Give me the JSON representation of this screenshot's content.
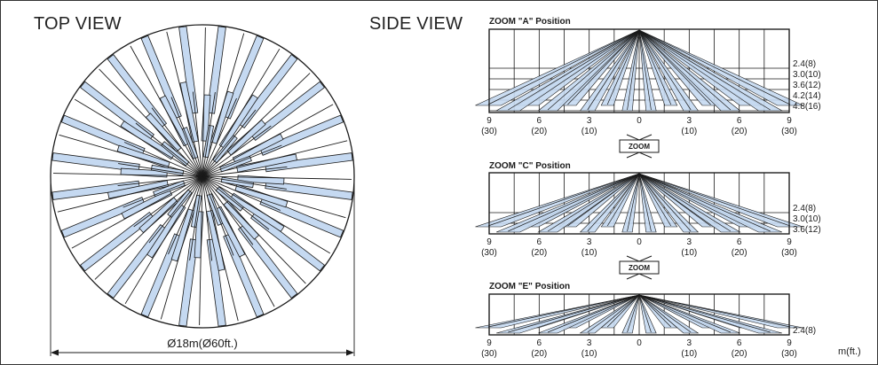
{
  "top_view": {
    "title": "TOP VIEW",
    "diameter_label": "Ø18m(Ø60ft.)",
    "colors": {
      "beam_fill": "#c5d9f1",
      "line": "#1a1a1a"
    }
  },
  "side_view": {
    "title": "SIDE VIEW",
    "unit_label": "m(ft.)",
    "zoom_button_label": "ZOOM",
    "panels": [
      {
        "title": "ZOOM \"A\" Position",
        "x_ticks": [
          "9",
          "6",
          "3",
          "0",
          "3",
          "6",
          "9"
        ],
        "x_ticks_ft": [
          "(30)",
          "(20)",
          "(10)",
          "",
          "(10)",
          "(20)",
          "(30)"
        ],
        "heights": [
          "2.4(8)",
          "3.0(10)",
          "3.6(12)",
          "4.2(14)",
          "4.8(16)"
        ]
      },
      {
        "title": "ZOOM \"C\" Position",
        "x_ticks": [
          "9",
          "6",
          "3",
          "0",
          "3",
          "6",
          "9"
        ],
        "x_ticks_ft": [
          "(30)",
          "(20)",
          "(10)",
          "",
          "(10)",
          "(20)",
          "(30)"
        ],
        "heights": [
          "2.4(8)",
          "3.0(10)",
          "3.6(12)"
        ]
      },
      {
        "title": "ZOOM \"E\" Position",
        "x_ticks": [
          "9",
          "6",
          "3",
          "0",
          "3",
          "6",
          "9"
        ],
        "x_ticks_ft": [
          "(30)",
          "(20)",
          "(10)",
          "",
          "(10)",
          "(20)",
          "(30)"
        ],
        "heights": [
          "2.4(8)"
        ]
      }
    ]
  }
}
